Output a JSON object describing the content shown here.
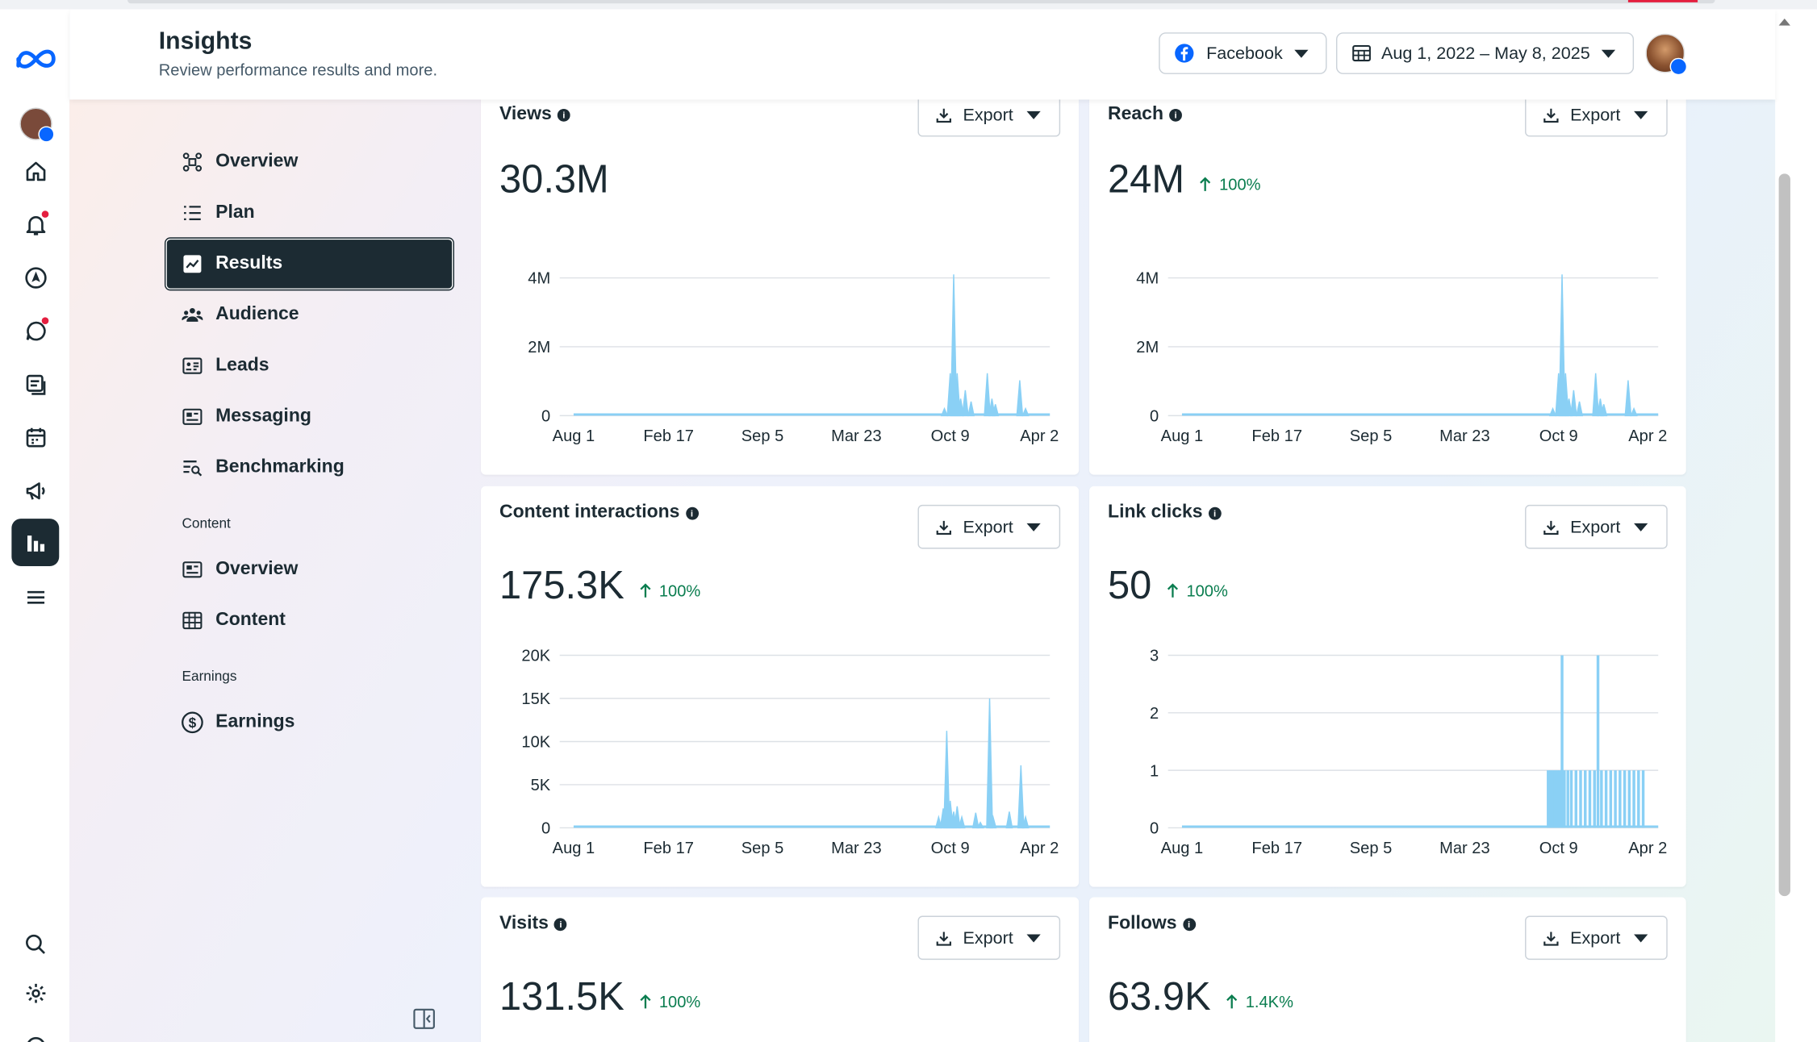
{
  "header": {
    "title": "Insights",
    "subtitle": "Review performance results and more.",
    "platform": "Facebook",
    "date_range": "Aug 1, 2022 – May 8, 2025"
  },
  "nav": {
    "items": [
      {
        "label": "Overview",
        "icon": "overview-icon"
      },
      {
        "label": "Plan",
        "icon": "plan-list-icon"
      },
      {
        "label": "Results",
        "icon": "results-chart-icon",
        "active": true
      },
      {
        "label": "Audience",
        "icon": "audience-icon"
      },
      {
        "label": "Leads",
        "icon": "leads-card-icon"
      },
      {
        "label": "Messaging",
        "icon": "messaging-icon"
      },
      {
        "label": "Benchmarking",
        "icon": "benchmarking-icon"
      }
    ],
    "content_section": "Content",
    "content_items": [
      {
        "label": "Overview",
        "icon": "content-overview-icon"
      },
      {
        "label": "Content",
        "icon": "content-table-icon"
      }
    ],
    "earnings_section": "Earnings",
    "earnings_items": [
      {
        "label": "Earnings",
        "icon": "dollar-icon"
      }
    ]
  },
  "export_label": "Export",
  "cards": [
    {
      "key": "views",
      "title": "Views",
      "value": "30.3M",
      "delta": ""
    },
    {
      "key": "reach",
      "title": "Reach",
      "value": "24M",
      "delta": "100%"
    },
    {
      "key": "interactions",
      "title": "Content interactions",
      "value": "175.3K",
      "delta": "100%"
    },
    {
      "key": "linkclicks",
      "title": "Link clicks",
      "value": "50",
      "delta": "100%"
    },
    {
      "key": "visits",
      "title": "Visits",
      "value": "131.5K",
      "delta": "100%"
    },
    {
      "key": "follows",
      "title": "Follows",
      "value": "63.9K",
      "delta": "1.4K%"
    }
  ],
  "chart_data": [
    {
      "type": "area",
      "title": "Views",
      "x_ticks": [
        "Aug 1",
        "Feb 17",
        "Sep 5",
        "Mar 23",
        "Oct 9",
        "Apr 2"
      ],
      "y_ticks": [
        "0",
        "2M",
        "4M"
      ],
      "ylim": [
        0,
        4000000
      ],
      "x": [
        "Aug 1",
        "Feb 17",
        "Sep 5",
        "Mar 23",
        "Oct 9",
        "Apr 2"
      ],
      "values": [
        0,
        0,
        0,
        0,
        4100000,
        0
      ],
      "color": "#8ad0f5"
    },
    {
      "type": "area",
      "title": "Reach",
      "x_ticks": [
        "Aug 1",
        "Feb 17",
        "Sep 5",
        "Mar 23",
        "Oct 9",
        "Apr 2"
      ],
      "y_ticks": [
        "0",
        "2M",
        "4M"
      ],
      "ylim": [
        0,
        4000000
      ],
      "x": [
        "Aug 1",
        "Feb 17",
        "Sep 5",
        "Mar 23",
        "Oct 9",
        "Apr 2"
      ],
      "values": [
        0,
        0,
        0,
        0,
        4100000,
        0
      ],
      "color": "#8ad0f5"
    },
    {
      "type": "area",
      "title": "Content interactions",
      "x_ticks": [
        "Aug 1",
        "Feb 17",
        "Sep 5",
        "Mar 23",
        "Oct 9",
        "Apr 2"
      ],
      "y_ticks": [
        "0",
        "5K",
        "10K",
        "15K",
        "20K"
      ],
      "ylim": [
        0,
        20000
      ],
      "x": [
        "Aug 1",
        "Feb 17",
        "Sep 5",
        "Mar 23",
        "Oct 9",
        "Apr 2"
      ],
      "values": [
        0,
        0,
        0,
        0,
        12500,
        0
      ],
      "color": "#8ad0f5"
    },
    {
      "type": "bar",
      "title": "Link clicks",
      "x_ticks": [
        "Aug 1",
        "Feb 17",
        "Sep 5",
        "Mar 23",
        "Oct 9",
        "Apr 2"
      ],
      "y_ticks": [
        "0",
        "1",
        "2",
        "3"
      ],
      "ylim": [
        0,
        3
      ],
      "x": [
        "Aug 1",
        "Feb 17",
        "Sep 5",
        "Mar 23",
        "Oct 9",
        "Apr 2"
      ],
      "values": [
        0,
        0,
        0,
        0,
        3,
        0
      ],
      "color": "#8ad0f5"
    }
  ]
}
